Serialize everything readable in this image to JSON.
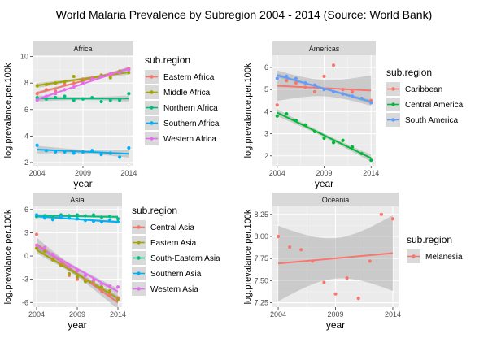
{
  "title": "World Malaria Prevalence by Subregion 2004 - 2014 (Source: World Bank)",
  "chart_data": [
    {
      "type": "scatter",
      "facet": "Africa",
      "xlabel": "year",
      "ylabel": "log.prevalance.per.100k",
      "xlim": [
        2003.5,
        2014.5
      ],
      "ylim": [
        1.75,
        10.1
      ],
      "xticks": [
        2004,
        2009,
        2014
      ],
      "yticks": [
        2,
        4,
        6,
        8,
        10
      ],
      "legend_title": "sub.region",
      "trend": "linear fit with confidence band",
      "x": [
        2004,
        2005,
        2006,
        2007,
        2008,
        2009,
        2010,
        2011,
        2012,
        2013,
        2014
      ],
      "series": [
        {
          "name": "Eastern Africa",
          "color": "#F8766D",
          "values": [
            7.2,
            7.5,
            7.4,
            7.9,
            8.0,
            8.3,
            8.4,
            8.5,
            8.6,
            8.9,
            9.1
          ]
        },
        {
          "name": "Middle Africa",
          "color": "#A3A500",
          "values": [
            7.8,
            7.9,
            8.0,
            8.1,
            8.5,
            8.2,
            8.3,
            8.6,
            8.4,
            8.9,
            8.8
          ]
        },
        {
          "name": "Northern Africa",
          "color": "#00BF7D",
          "values": [
            6.9,
            6.8,
            6.9,
            7.0,
            6.7,
            6.8,
            6.9,
            6.6,
            6.7,
            6.7,
            7.2
          ]
        },
        {
          "name": "Southern Africa",
          "color": "#00B0F6",
          "values": [
            3.3,
            2.9,
            2.8,
            2.8,
            2.7,
            2.8,
            2.9,
            2.6,
            2.7,
            2.4,
            3.1
          ]
        },
        {
          "name": "Western Africa",
          "color": "#E76BF3",
          "values": [
            6.7,
            7.0,
            7.2,
            7.5,
            7.7,
            8.0,
            8.3,
            8.5,
            8.7,
            8.8,
            9.0
          ]
        }
      ]
    },
    {
      "type": "scatter",
      "facet": "Americas",
      "xlabel": "year",
      "ylabel": "log.prevalance.per.100k",
      "xlim": [
        2003.5,
        2014.5
      ],
      "ylim": [
        1.55,
        6.55
      ],
      "xticks": [
        2004,
        2009,
        2014
      ],
      "yticks": [
        2,
        3,
        4,
        5,
        6
      ],
      "legend_title": "sub.region",
      "trend": "linear fit with confidence band",
      "x": [
        2004,
        2005,
        2006,
        2007,
        2008,
        2009,
        2010,
        2011,
        2012,
        2013,
        2014
      ],
      "series": [
        {
          "name": "Caribbean",
          "color": "#F8766D",
          "values": [
            4.3,
            5.4,
            5.3,
            5.1,
            4.9,
            5.6,
            6.1,
            5.0,
            4.9,
            4.6,
            4.5
          ]
        },
        {
          "name": "Central America",
          "color": "#00BA38",
          "values": [
            3.8,
            3.9,
            3.6,
            3.4,
            3.1,
            2.8,
            2.6,
            2.7,
            2.4,
            2.1,
            1.8
          ]
        },
        {
          "name": "South America",
          "color": "#619CFF",
          "values": [
            5.5,
            5.6,
            5.5,
            5.3,
            5.2,
            5.0,
            4.9,
            4.8,
            4.7,
            4.6,
            4.4
          ]
        }
      ]
    },
    {
      "type": "scatter",
      "facet": "Asia",
      "xlabel": "year",
      "ylabel": "log.prevalance.per.100k",
      "xlim": [
        2003.5,
        2014.5
      ],
      "ylim": [
        -6.6,
        6.4
      ],
      "xticks": [
        2004,
        2009,
        2014
      ],
      "yticks": [
        -6,
        -3,
        0,
        3,
        6
      ],
      "legend_title": "sub.region",
      "trend": "linear fit with confidence band",
      "x": [
        2004,
        2005,
        2006,
        2007,
        2008,
        2009,
        2010,
        2011,
        2012,
        2013,
        2014
      ],
      "series": [
        {
          "name": "Central Asia",
          "color": "#F8766D",
          "values": [
            2.8,
            1.0,
            -0.4,
            -1.0,
            -2.5,
            -3.0,
            -3.1,
            -3.6,
            -4.5,
            -5.0,
            -5.4
          ]
        },
        {
          "name": "Eastern Asia",
          "color": "#A3A500",
          "values": [
            1.0,
            0.6,
            -0.5,
            -1.2,
            -2.3,
            -2.7,
            -3.3,
            -3.2,
            -4.0,
            -4.5,
            -5.6
          ]
        },
        {
          "name": "South-Eastern Asia",
          "color": "#00BF7D",
          "values": [
            5.1,
            5.2,
            5.0,
            5.3,
            5.2,
            5.3,
            5.2,
            5.3,
            5.0,
            5.1,
            4.8
          ]
        },
        {
          "name": "Southern Asia",
          "color": "#00B0F6",
          "values": [
            5.3,
            4.9,
            4.7,
            5.1,
            4.9,
            4.8,
            4.6,
            4.5,
            4.4,
            4.6,
            4.4
          ]
        },
        {
          "name": "Western Asia",
          "color": "#E76BF3",
          "values": [
            1.4,
            1.1,
            0.2,
            -0.6,
            -1.4,
            -1.9,
            -2.5,
            -3.1,
            -3.6,
            -3.9,
            -4.0
          ]
        }
      ]
    },
    {
      "type": "scatter",
      "facet": "Oceania",
      "xlabel": "year",
      "ylabel": "log.prevalance.per.100k",
      "xlim": [
        2003.5,
        2014.5
      ],
      "ylim": [
        7.2,
        8.34
      ],
      "xticks": [
        2004,
        2009,
        2014
      ],
      "yticks": [
        7.25,
        7.5,
        7.75,
        8.0,
        8.25
      ],
      "legend_title": "sub.region",
      "trend": "linear fit with confidence band",
      "x": [
        2004,
        2005,
        2006,
        2007,
        2008,
        2009,
        2010,
        2011,
        2012,
        2013,
        2014
      ],
      "series": [
        {
          "name": "Melanesia",
          "color": "#F8766D",
          "values": [
            8.0,
            7.88,
            7.85,
            7.72,
            7.48,
            7.35,
            7.53,
            7.3,
            7.72,
            8.25,
            8.2
          ]
        }
      ]
    }
  ]
}
